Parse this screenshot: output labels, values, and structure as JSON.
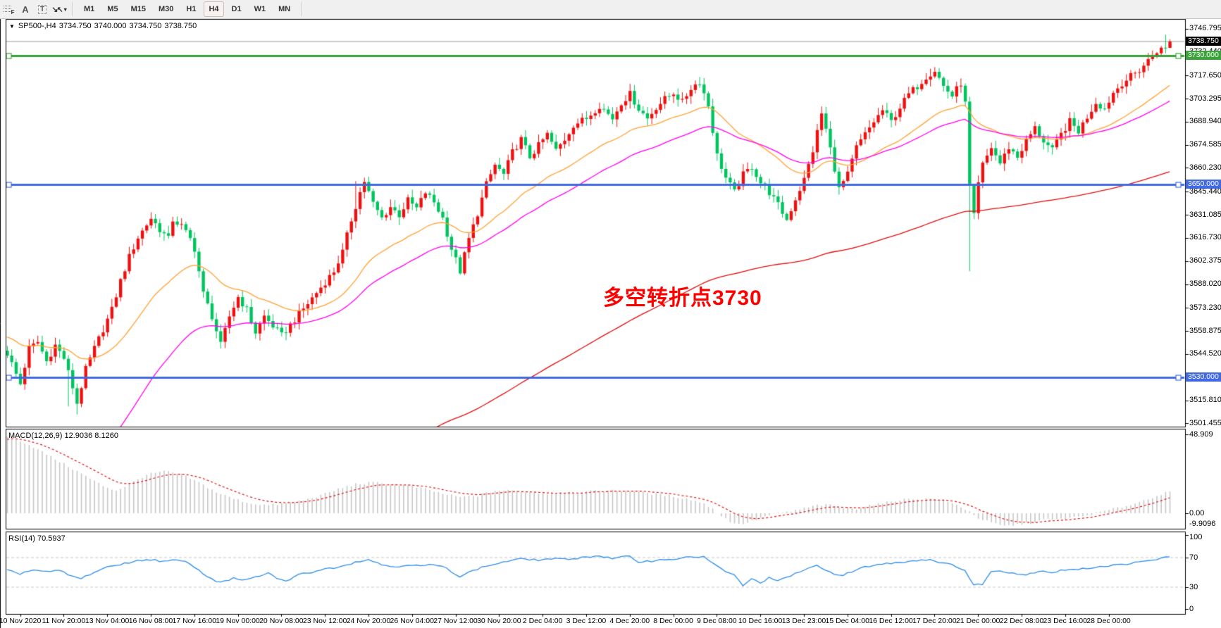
{
  "toolbar": {
    "tools": [
      {
        "label": "F"
      },
      {
        "label": "A"
      },
      {
        "label": "T"
      },
      {
        "label": "↘↖"
      }
    ],
    "caret": "▾",
    "timeframes": [
      {
        "label": "M1",
        "active": false
      },
      {
        "label": "M5",
        "active": false
      },
      {
        "label": "M15",
        "active": false
      },
      {
        "label": "M30",
        "active": false
      },
      {
        "label": "H1",
        "active": false
      },
      {
        "label": "H4",
        "active": true
      },
      {
        "label": "D1",
        "active": false
      },
      {
        "label": "W1",
        "active": false
      },
      {
        "label": "MN",
        "active": false
      }
    ]
  },
  "chart_header": {
    "dropdown": "▼",
    "symbol": "SP500-,H4",
    "open": "3734.750",
    "high": "3740.000",
    "low": "3734.750",
    "close": "3738.750"
  },
  "annotation": {
    "text": "多空转折点3730",
    "color": "#FF0000"
  },
  "indicators": {
    "macd": {
      "label": "MACD(12,26,9) 12.9036 8.1260",
      "ticks": [
        "48.909",
        "0.00",
        "-9.9096"
      ]
    },
    "rsi": {
      "label": "RSI(14) 70.5937",
      "ticks": [
        "100",
        "70",
        "30",
        "0"
      ],
      "levels": [
        70,
        30
      ]
    }
  },
  "price_axis": {
    "ticks": [
      "3746.795",
      "3732.440",
      "3717.650",
      "3703.295",
      "3688.940",
      "3674.585",
      "3660.230",
      "3645.440",
      "3631.085",
      "3616.730",
      "3602.375",
      "3588.020",
      "3573.230",
      "3558.875",
      "3544.520",
      "3515.810",
      "3501.455"
    ],
    "badges": [
      {
        "label": "3738.750",
        "price": 3738.75,
        "bg": "#000000"
      },
      {
        "label": "3730.000",
        "price": 3730.0,
        "bg": "#3aa33a"
      },
      {
        "label": "3650.000",
        "price": 3650.0,
        "bg": "#4169e1"
      },
      {
        "label": "3530.000",
        "price": 3530.0,
        "bg": "#4169e1"
      }
    ]
  },
  "time_axis": {
    "labels": [
      "10 Nov 2020",
      "11 Nov 20:00",
      "13 Nov 04:00",
      "16 Nov 08:00",
      "17 Nov 16:00",
      "19 Nov 00:00",
      "20 Nov 08:00",
      "23 Nov 12:00",
      "24 Nov 20:00",
      "26 Nov 04:00",
      "27 Nov 12:00",
      "30 Nov 20:00",
      "2 Dec 04:00",
      "3 Dec 12:00",
      "4 Dec 20:00",
      "8 Dec 00:00",
      "9 Dec 08:00",
      "10 Dec 16:00",
      "13 Dec 23:00",
      "15 Dec 04:00",
      "16 Dec 12:00",
      "17 Dec 20:00",
      "21 Dec 00:00",
      "22 Dec 08:00",
      "23 Dec 16:00",
      "28 Dec 00:00"
    ]
  },
  "colors": {
    "up": "#ee1010",
    "down": "#00c45e",
    "ma_fast": "#ffa233",
    "ma_mid": "#ff00f0",
    "ma_slow": "#dd1111",
    "hline_green": "#3aa33a",
    "hline_blue": "#4169e1",
    "current_line": "#9a9a9a",
    "macd_hist": "#c6c6c6",
    "macd_signal": "#e01010",
    "rsi_line": "#2e8de8",
    "rsi_level": "#c8c8c8",
    "frame": "#000000"
  },
  "chart_data": {
    "type": "candlestick+indicators",
    "symbol": "SP500-",
    "period": "H4",
    "bars": 268,
    "bars_per_label": 10,
    "main_ylim": [
      3499.0,
      3752.3
    ],
    "macd_ylim": [
      -10.0,
      52.0
    ],
    "rsi_ylim": [
      0,
      100
    ],
    "current_price": 3738.75,
    "last_bar": {
      "open": 3734.75,
      "high": 3740.0,
      "low": 3734.75,
      "close": 3738.75
    },
    "hlines": [
      {
        "price": 3730.0,
        "color": "#3aa33a",
        "width": 3
      },
      {
        "price": 3650.0,
        "color": "#4169e1",
        "width": 3
      },
      {
        "price": 3530.0,
        "color": "#4169e1",
        "width": 3
      }
    ],
    "close_anchors": [
      [
        0,
        3545
      ],
      [
        2,
        3532
      ],
      [
        3,
        3526
      ],
      [
        5,
        3548
      ],
      [
        7,
        3552
      ],
      [
        9,
        3540
      ],
      [
        11,
        3550
      ],
      [
        13,
        3542
      ],
      [
        15,
        3524
      ],
      [
        16,
        3514
      ],
      [
        18,
        3535
      ],
      [
        20,
        3548
      ],
      [
        22,
        3560
      ],
      [
        24,
        3572
      ],
      [
        26,
        3590
      ],
      [
        28,
        3605
      ],
      [
        30,
        3617
      ],
      [
        32,
        3625
      ],
      [
        33,
        3629
      ],
      [
        35,
        3622
      ],
      [
        37,
        3616
      ],
      [
        38,
        3628
      ],
      [
        40,
        3624
      ],
      [
        42,
        3616
      ],
      [
        43,
        3610
      ],
      [
        45,
        3582
      ],
      [
        47,
        3568
      ],
      [
        49,
        3550
      ],
      [
        51,
        3568
      ],
      [
        53,
        3580
      ],
      [
        55,
        3572
      ],
      [
        57,
        3558
      ],
      [
        59,
        3568
      ],
      [
        61,
        3562
      ],
      [
        63,
        3556
      ],
      [
        66,
        3566
      ],
      [
        69,
        3576
      ],
      [
        72,
        3586
      ],
      [
        75,
        3596
      ],
      [
        77,
        3608
      ],
      [
        79,
        3628
      ],
      [
        81,
        3645
      ],
      [
        82,
        3652
      ],
      [
        84,
        3638
      ],
      [
        86,
        3629
      ],
      [
        88,
        3636
      ],
      [
        90,
        3631
      ],
      [
        92,
        3640
      ],
      [
        94,
        3635
      ],
      [
        96,
        3645
      ],
      [
        98,
        3639
      ],
      [
        100,
        3629
      ],
      [
        102,
        3610
      ],
      [
        104,
        3596
      ],
      [
        106,
        3616
      ],
      [
        108,
        3632
      ],
      [
        110,
        3650
      ],
      [
        112,
        3662
      ],
      [
        114,
        3656
      ],
      [
        116,
        3670
      ],
      [
        118,
        3678
      ],
      [
        120,
        3667
      ],
      [
        122,
        3674
      ],
      [
        124,
        3681
      ],
      [
        126,
        3671
      ],
      [
        128,
        3678
      ],
      [
        130,
        3687
      ],
      [
        133,
        3691
      ],
      [
        136,
        3699
      ],
      [
        139,
        3691
      ],
      [
        141,
        3701
      ],
      [
        143,
        3706
      ],
      [
        145,
        3697
      ],
      [
        147,
        3691
      ],
      [
        149,
        3698
      ],
      [
        151,
        3703
      ],
      [
        153,
        3707
      ],
      [
        155,
        3701
      ],
      [
        157,
        3710
      ],
      [
        159,
        3714
      ],
      [
        161,
        3699
      ],
      [
        163,
        3668
      ],
      [
        165,
        3654
      ],
      [
        167,
        3645
      ],
      [
        169,
        3656
      ],
      [
        171,
        3661
      ],
      [
        173,
        3651
      ],
      [
        175,
        3645
      ],
      [
        177,
        3637
      ],
      [
        179,
        3628
      ],
      [
        181,
        3641
      ],
      [
        183,
        3653
      ],
      [
        185,
        3671
      ],
      [
        187,
        3694
      ],
      [
        188,
        3684
      ],
      [
        190,
        3660
      ],
      [
        191,
        3647
      ],
      [
        193,
        3656
      ],
      [
        195,
        3673
      ],
      [
        197,
        3681
      ],
      [
        199,
        3689
      ],
      [
        201,
        3696
      ],
      [
        203,
        3689
      ],
      [
        205,
        3698
      ],
      [
        207,
        3706
      ],
      [
        209,
        3711
      ],
      [
        211,
        3717
      ],
      [
        213,
        3721
      ],
      [
        215,
        3711
      ],
      [
        217,
        3705
      ],
      [
        219,
        3713
      ],
      [
        220,
        3700
      ],
      [
        221,
        3648
      ],
      [
        222,
        3630
      ],
      [
        223,
        3650
      ],
      [
        224,
        3662
      ],
      [
        226,
        3673
      ],
      [
        228,
        3663
      ],
      [
        230,
        3673
      ],
      [
        232,
        3667
      ],
      [
        234,
        3677
      ],
      [
        236,
        3685
      ],
      [
        238,
        3677
      ],
      [
        240,
        3671
      ],
      [
        242,
        3681
      ],
      [
        244,
        3689
      ],
      [
        246,
        3683
      ],
      [
        248,
        3692
      ],
      [
        250,
        3701
      ],
      [
        252,
        3697
      ],
      [
        254,
        3707
      ],
      [
        256,
        3713
      ],
      [
        258,
        3717
      ],
      [
        260,
        3721
      ],
      [
        262,
        3727
      ],
      [
        264,
        3733
      ],
      [
        266,
        3734.75
      ],
      [
        267,
        3738.75
      ]
    ],
    "wick_overrides": {
      "14": {
        "low": 3512
      },
      "16": {
        "low": 3507
      },
      "80": {
        "high": 3652
      },
      "221": {
        "low": 3596
      },
      "266": {
        "high": 3743
      }
    },
    "moving_averages": [
      {
        "name": "fast",
        "color": "#ffa233",
        "alpha": 0.07,
        "seed": 3556
      },
      {
        "name": "mid",
        "color": "#ff00f0",
        "alpha": 0.04,
        "seed": 3398
      },
      {
        "name": "slow",
        "color": "#dd1111",
        "alpha": 0.011,
        "seed": 3305
      }
    ],
    "macd": {
      "value": 12.9036,
      "signal_value": 8.126,
      "signal_alpha": 0.18,
      "anchors": [
        [
          0,
          48
        ],
        [
          3,
          45
        ],
        [
          6,
          41
        ],
        [
          10,
          35
        ],
        [
          14,
          29
        ],
        [
          18,
          23
        ],
        [
          22,
          17
        ],
        [
          25,
          14
        ],
        [
          28,
          18
        ],
        [
          32,
          24
        ],
        [
          36,
          26
        ],
        [
          40,
          24
        ],
        [
          44,
          19
        ],
        [
          48,
          13
        ],
        [
          52,
          9
        ],
        [
          56,
          6
        ],
        [
          60,
          5
        ],
        [
          64,
          6
        ],
        [
          68,
          8
        ],
        [
          72,
          11
        ],
        [
          76,
          15
        ],
        [
          80,
          18
        ],
        [
          84,
          19
        ],
        [
          88,
          18
        ],
        [
          92,
          17
        ],
        [
          96,
          15
        ],
        [
          100,
          12
        ],
        [
          104,
          10
        ],
        [
          108,
          11
        ],
        [
          112,
          14
        ],
        [
          116,
          14
        ],
        [
          120,
          13
        ],
        [
          124,
          12
        ],
        [
          128,
          13
        ],
        [
          132,
          13
        ],
        [
          136,
          14
        ],
        [
          140,
          14
        ],
        [
          144,
          14
        ],
        [
          148,
          12
        ],
        [
          152,
          11
        ],
        [
          156,
          9
        ],
        [
          159,
          7
        ],
        [
          162,
          3
        ],
        [
          164,
          -2
        ],
        [
          166,
          -5
        ],
        [
          168,
          -7
        ],
        [
          171,
          -5
        ],
        [
          174,
          -2
        ],
        [
          177,
          0
        ],
        [
          180,
          1
        ],
        [
          183,
          3
        ],
        [
          186,
          5
        ],
        [
          189,
          5
        ],
        [
          192,
          3
        ],
        [
          195,
          3
        ],
        [
          198,
          5
        ],
        [
          201,
          6
        ],
        [
          204,
          8
        ],
        [
          208,
          9
        ],
        [
          212,
          9
        ],
        [
          216,
          7
        ],
        [
          219,
          4
        ],
        [
          221,
          1
        ],
        [
          223,
          -3
        ],
        [
          226,
          -6
        ],
        [
          229,
          -8
        ],
        [
          232,
          -7
        ],
        [
          235,
          -6
        ],
        [
          238,
          -4
        ],
        [
          241,
          -4
        ],
        [
          244,
          -3
        ],
        [
          247,
          -2
        ],
        [
          250,
          0
        ],
        [
          253,
          2
        ],
        [
          256,
          4
        ],
        [
          259,
          6
        ],
        [
          262,
          9
        ],
        [
          264,
          11
        ],
        [
          266,
          12.5
        ],
        [
          267,
          12.9
        ]
      ]
    },
    "rsi": {
      "value": 70.5937,
      "anchors": [
        [
          0,
          52
        ],
        [
          3,
          48
        ],
        [
          6,
          53
        ],
        [
          9,
          50
        ],
        [
          12,
          52
        ],
        [
          15,
          44
        ],
        [
          17,
          41
        ],
        [
          20,
          50
        ],
        [
          24,
          58
        ],
        [
          28,
          63
        ],
        [
          31,
          66
        ],
        [
          33,
          67
        ],
        [
          36,
          64
        ],
        [
          39,
          66
        ],
        [
          42,
          62
        ],
        [
          44,
          52
        ],
        [
          46,
          44
        ],
        [
          48,
          38
        ],
        [
          50,
          37
        ],
        [
          52,
          42
        ],
        [
          54,
          38
        ],
        [
          56,
          41
        ],
        [
          58,
          45
        ],
        [
          60,
          48
        ],
        [
          62,
          42
        ],
        [
          64,
          37
        ],
        [
          66,
          44
        ],
        [
          68,
          48
        ],
        [
          70,
          50
        ],
        [
          72,
          53
        ],
        [
          75,
          56
        ],
        [
          78,
          60
        ],
        [
          81,
          65
        ],
        [
          83,
          67
        ],
        [
          86,
          60
        ],
        [
          89,
          57
        ],
        [
          92,
          60
        ],
        [
          95,
          58
        ],
        [
          98,
          60
        ],
        [
          101,
          55
        ],
        [
          104,
          44
        ],
        [
          107,
          52
        ],
        [
          110,
          58
        ],
        [
          113,
          62
        ],
        [
          116,
          66
        ],
        [
          119,
          68
        ],
        [
          122,
          66
        ],
        [
          125,
          68
        ],
        [
          128,
          67
        ],
        [
          131,
          69
        ],
        [
          134,
          71
        ],
        [
          136,
          72
        ],
        [
          139,
          68
        ],
        [
          141,
          70
        ],
        [
          143,
          71
        ],
        [
          145,
          64
        ],
        [
          148,
          65
        ],
        [
          151,
          67
        ],
        [
          154,
          68
        ],
        [
          157,
          70
        ],
        [
          160,
          71
        ],
        [
          163,
          58
        ],
        [
          165,
          50
        ],
        [
          167,
          46
        ],
        [
          169,
          32
        ],
        [
          171,
          40
        ],
        [
          173,
          36
        ],
        [
          175,
          42
        ],
        [
          177,
          38
        ],
        [
          179,
          42
        ],
        [
          181,
          48
        ],
        [
          184,
          55
        ],
        [
          186,
          58
        ],
        [
          188,
          52
        ],
        [
          190,
          48
        ],
        [
          192,
          46
        ],
        [
          194,
          50
        ],
        [
          196,
          55
        ],
        [
          198,
          58
        ],
        [
          200,
          60
        ],
        [
          203,
          62
        ],
        [
          206,
          64
        ],
        [
          209,
          66
        ],
        [
          212,
          67
        ],
        [
          215,
          62
        ],
        [
          218,
          58
        ],
        [
          220,
          52
        ],
        [
          222,
          32
        ],
        [
          224,
          34
        ],
        [
          226,
          50
        ],
        [
          228,
          52
        ],
        [
          230,
          50
        ],
        [
          232,
          48
        ],
        [
          234,
          46
        ],
        [
          236,
          50
        ],
        [
          238,
          52
        ],
        [
          240,
          49
        ],
        [
          242,
          52
        ],
        [
          244,
          54
        ],
        [
          246,
          53
        ],
        [
          248,
          55
        ],
        [
          250,
          57
        ],
        [
          252,
          58
        ],
        [
          254,
          59
        ],
        [
          256,
          60
        ],
        [
          258,
          62
        ],
        [
          260,
          63
        ],
        [
          262,
          65
        ],
        [
          264,
          67
        ],
        [
          266,
          70
        ],
        [
          267,
          70.6
        ]
      ]
    }
  }
}
